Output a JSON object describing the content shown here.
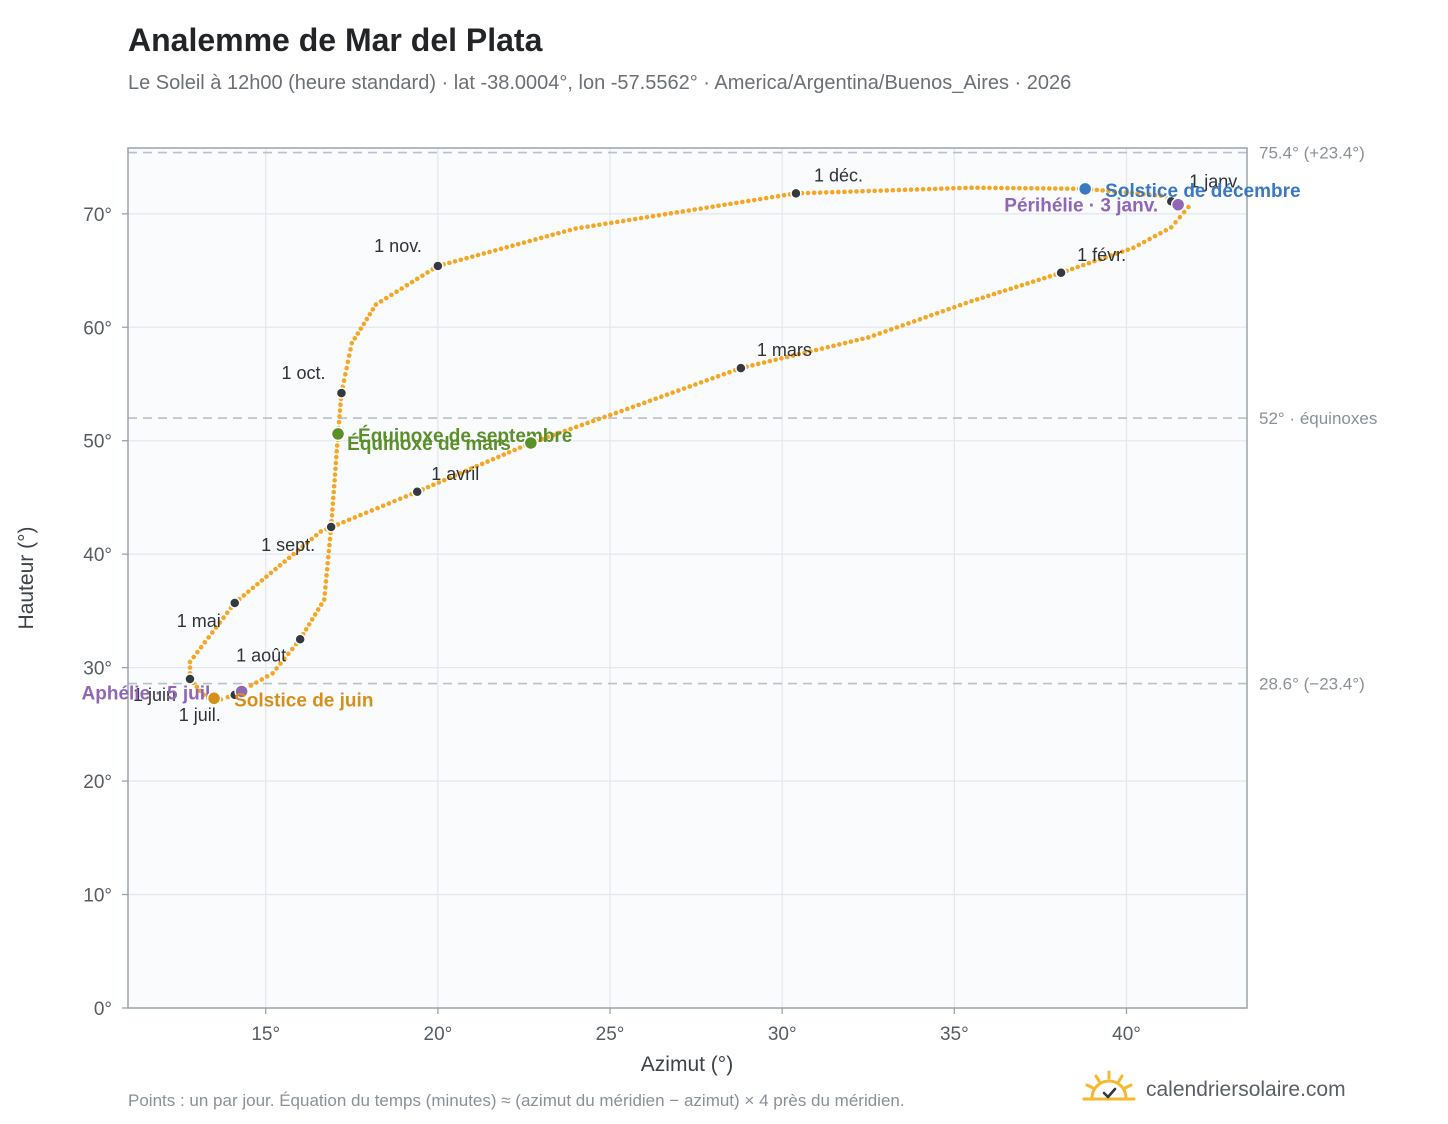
{
  "title": "Analemme de Mar del Plata",
  "subtitle": "Le Soleil à 12h00 (heure standard) · lat -38.0004°, lon -57.5562° · America/Argentina/Buenos_Aires · 2026",
  "footnote": "Points : un par jour. Équation du temps (minutes) ≈ (azimut du méridien − azimut) × 4 près du méridien.",
  "brand": {
    "name": "calendriersolaire.com",
    "icon": "sun-logo-icon"
  },
  "colors": {
    "curve": "#f5a623",
    "month_marker": "#343a40",
    "equinox": "#5a8f29",
    "june_solstice": "#d4901a",
    "december_solstice": "#3a78c2",
    "apsis": "#9166b5",
    "reference_line": "#b9c0c8",
    "plot_bg": "#f9fbfd",
    "grid": "#e4e8ee"
  },
  "chart_data": {
    "type": "scatter",
    "title": "Analemme de Mar del Plata",
    "xlabel": "Azimut (°)",
    "ylabel": "Hauteur (°)",
    "xlim": [
      11,
      43.5
    ],
    "ylim": [
      0,
      75.8
    ],
    "x_ticks": [
      15,
      20,
      25,
      30,
      35,
      40
    ],
    "x_tick_labels": [
      "15°",
      "20°",
      "25°",
      "30°",
      "35°",
      "40°"
    ],
    "y_ticks": [
      0,
      10,
      20,
      30,
      40,
      50,
      60,
      70
    ],
    "y_tick_labels": [
      "0°",
      "10°",
      "20°",
      "30°",
      "40°",
      "50°",
      "60°",
      "70°"
    ],
    "grid": true,
    "points_per": "day",
    "curve_path": [
      [
        41.4,
        71.1
      ],
      [
        41.8,
        70.6
      ],
      [
        41.3,
        68.8
      ],
      [
        40.2,
        67.0
      ],
      [
        38.1,
        64.8
      ],
      [
        35.5,
        62.3
      ],
      [
        32.5,
        59.1
      ],
      [
        28.8,
        56.4
      ],
      [
        25.5,
        52.8
      ],
      [
        22.7,
        49.8
      ],
      [
        19.4,
        45.5
      ],
      [
        16.6,
        42.0
      ],
      [
        14.1,
        35.7
      ],
      [
        12.8,
        30.5
      ],
      [
        12.8,
        29.0
      ],
      [
        13.2,
        27.6
      ],
      [
        13.7,
        27.2
      ],
      [
        14.1,
        27.6
      ],
      [
        15.2,
        29.5
      ],
      [
        16.0,
        32.5
      ],
      [
        16.7,
        36.0
      ],
      [
        16.9,
        42.4
      ],
      [
        17.0,
        46.5
      ],
      [
        17.1,
        50.6
      ],
      [
        17.2,
        54.2
      ],
      [
        17.5,
        58.6
      ],
      [
        18.2,
        62.0
      ],
      [
        20.0,
        65.4
      ],
      [
        24.0,
        68.7
      ],
      [
        30.4,
        71.8
      ],
      [
        35.5,
        72.3
      ],
      [
        38.8,
        72.2
      ],
      [
        41.0,
        71.6
      ],
      [
        41.4,
        71.1
      ]
    ],
    "month_markers": [
      {
        "label": "1 janv.",
        "x": 41.3,
        "y": 71.1
      },
      {
        "label": "1 févr.",
        "x": 38.1,
        "y": 64.8
      },
      {
        "label": "1 mars",
        "x": 28.8,
        "y": 56.4
      },
      {
        "label": "1 avril",
        "x": 19.4,
        "y": 45.5
      },
      {
        "label": "1 mai",
        "x": 14.1,
        "y": 35.7
      },
      {
        "label": "1 juin",
        "x": 12.8,
        "y": 29.0
      },
      {
        "label": "1 juil.",
        "x": 14.1,
        "y": 27.6
      },
      {
        "label": "1 août",
        "x": 16.0,
        "y": 32.5
      },
      {
        "label": "1 sept.",
        "x": 16.9,
        "y": 42.4
      },
      {
        "label": "1 oct.",
        "x": 17.2,
        "y": 54.2
      },
      {
        "label": "1 nov.",
        "x": 20.0,
        "y": 65.4
      },
      {
        "label": "1 déc.",
        "x": 30.4,
        "y": 71.8
      }
    ],
    "events": [
      {
        "label": "Solstice de décembre",
        "x": 38.8,
        "y": 72.2,
        "color": "#3a78c2"
      },
      {
        "label": "Périhélie · 3 janv.",
        "x": 41.5,
        "y": 70.8,
        "color": "#9166b5"
      },
      {
        "label": "Équinoxe de septembre",
        "x": 17.1,
        "y": 50.6,
        "color": "#5a8f29"
      },
      {
        "label": "Équinoxe de mars",
        "x": 22.7,
        "y": 49.8,
        "color": "#5a8f29"
      },
      {
        "label": "Aphélie · 5 juil.",
        "x": 14.3,
        "y": 27.9,
        "color": "#9166b5"
      },
      {
        "label": "Solstice de juin",
        "x": 13.5,
        "y": 27.3,
        "color": "#d4901a"
      }
    ],
    "reference_lines": [
      {
        "y": 75.4,
        "label": "75.4° (+23.4°)"
      },
      {
        "y": 52.0,
        "label": "52° · équinoxes"
      },
      {
        "y": 28.6,
        "label": "28.6° (−23.4°)"
      }
    ]
  }
}
